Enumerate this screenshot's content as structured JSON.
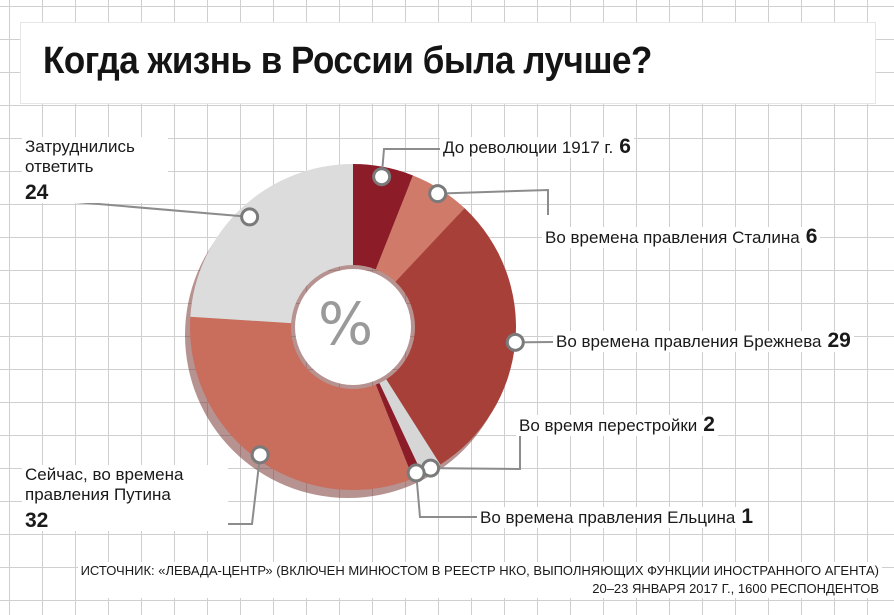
{
  "title": "Когда жизнь в России была лучше?",
  "center_symbol": "%",
  "source_line1": "ИСТОЧНИК: «ЛЕВАДА-ЦЕНТР» (ВКЛЮЧЕН МИНЮСТОМ В РЕЕСТР НКО, ВЫПОЛНЯЮЩИХ ФУНКЦИИ ИНОСТРАННОГО АГЕНТА)",
  "source_line2": "20–23 ЯНВАРЯ 2017 Г., 1600 РЕСПОНДЕНТОВ",
  "colors": {
    "dark_red": "#8b1c28",
    "salmon_light": "#d07a6a",
    "brick_red": "#a8403a",
    "pale_gray": "#d6d6d6",
    "salmon": "#c96d5c",
    "pale_gray_light": "#dcdcdc"
  },
  "chart_data": {
    "type": "pie",
    "donut": true,
    "unit": "%",
    "slices": [
      {
        "label": "До революции 1917 г.",
        "value": 6,
        "color": "#8b1c28"
      },
      {
        "label": "Во времена правления Сталина",
        "value": 6,
        "color": "#d07a6a"
      },
      {
        "label": "Во времена правления Брежнева",
        "value": 29,
        "color": "#a8403a"
      },
      {
        "label": "Во время перестройки",
        "value": 2,
        "color": "#d6d6d6"
      },
      {
        "label": "Во времена правления Ельцина",
        "value": 1,
        "color": "#8b1c28"
      },
      {
        "label": "Сейчас, во времена правления Путина",
        "value": 32,
        "color": "#c96d5c"
      },
      {
        "label": "Затруднились ответить",
        "value": 24,
        "color": "#dcdcdc"
      }
    ]
  }
}
